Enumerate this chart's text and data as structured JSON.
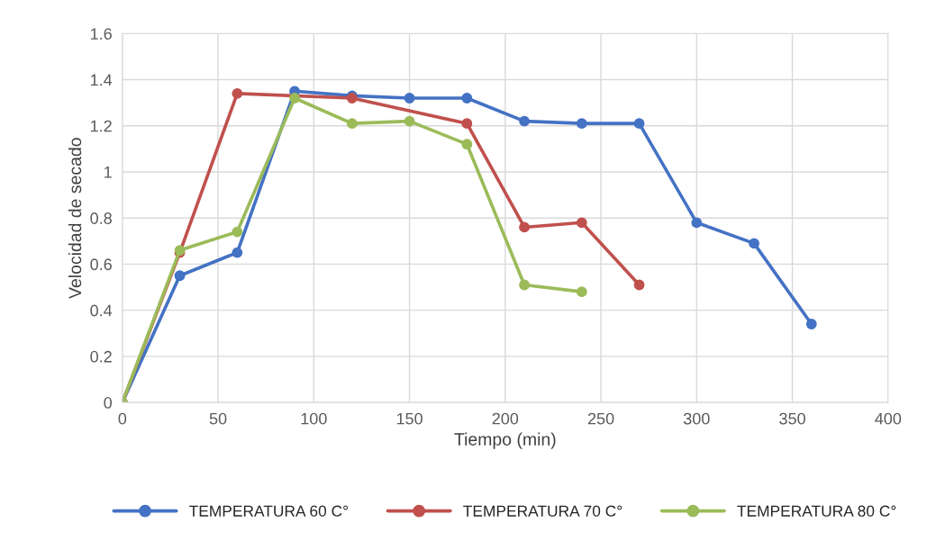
{
  "chart_data": {
    "type": "line",
    "xlabel": "Tiempo (min)",
    "ylabel": "Velocidad de secado",
    "series": [
      {
        "name": "TEMPERATURA 60 C°",
        "color": "#4472c4",
        "x": [
          0,
          30,
          60,
          90,
          120,
          150,
          180,
          210,
          240,
          270,
          300,
          330,
          360
        ],
        "values": [
          0,
          0.55,
          0.65,
          1.35,
          1.33,
          1.32,
          1.32,
          1.22,
          1.21,
          1.21,
          0.78,
          0.69,
          0.34
        ]
      },
      {
        "name": "TEMPERATURA 70 C°",
        "color": "#c0504d",
        "x": [
          0,
          30,
          60,
          90,
          120,
          150,
          180,
          210,
          240,
          270
        ],
        "values": [
          0,
          0.65,
          1.34,
          null,
          1.32,
          null,
          1.21,
          0.76,
          0.78,
          0.51
        ]
      },
      {
        "name": "TEMPERATURA 80 C°",
        "color": "#9bbb59",
        "x": [
          0,
          30,
          60,
          90,
          120,
          150,
          180,
          210,
          240
        ],
        "values": [
          0,
          0.66,
          0.74,
          1.32,
          1.21,
          1.22,
          1.12,
          0.51,
          0.48
        ]
      }
    ],
    "xlim": [
      0,
      400
    ],
    "xticks": [
      0,
      50,
      100,
      150,
      200,
      250,
      300,
      350,
      400
    ],
    "ylim": [
      0,
      1.6
    ],
    "yticks": [
      0,
      0.2,
      0.4,
      0.6,
      0.8,
      1,
      1.2,
      1.4,
      1.6
    ],
    "grid": true,
    "legend": "bottom",
    "marker": "circle",
    "line_style": "solid"
  }
}
